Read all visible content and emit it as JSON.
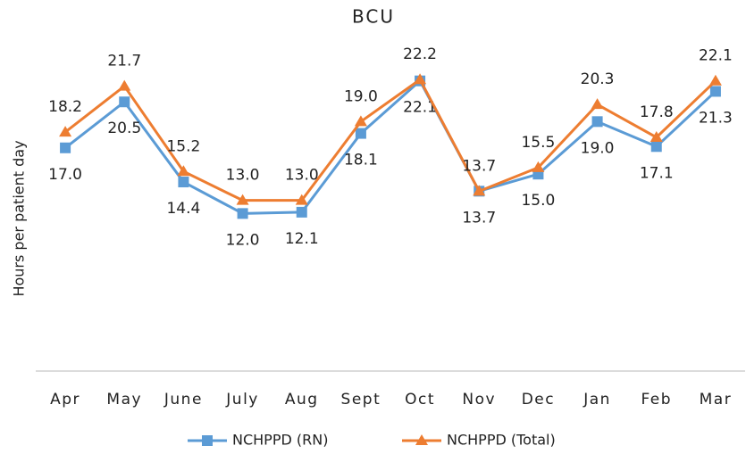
{
  "chart_data": {
    "type": "line",
    "title": "BCU",
    "y_label": "Hours per patient day",
    "categories": [
      "Apr",
      "May",
      "June",
      "July",
      "Aug",
      "Sept",
      "Oct",
      "Nov",
      "Dec",
      "Jan",
      "Feb",
      "Mar"
    ],
    "series": [
      {
        "name": "NCHPPD (RN)",
        "color": "#5b9bd5",
        "marker": "square",
        "values": [
          17.0,
          20.5,
          14.4,
          12.0,
          12.1,
          18.1,
          22.1,
          13.7,
          15.0,
          19.0,
          17.1,
          21.3
        ],
        "value_labels": [
          "17.0",
          "20.5",
          "14.4",
          "12.0",
          "12.1",
          "18.1",
          "22.1",
          "13.7",
          "15.0",
          "19.0",
          "17.1",
          "21.3"
        ]
      },
      {
        "name": "NCHPPD (Total)",
        "color": "#ed7d31",
        "marker": "triangle",
        "values": [
          18.2,
          21.7,
          15.2,
          13.0,
          13.0,
          19.0,
          22.2,
          13.7,
          15.5,
          20.3,
          17.8,
          22.1
        ],
        "value_labels": [
          "18.2",
          "21.7",
          "15.2",
          "13.0",
          "13.0",
          "19.0",
          "22.2",
          "13.7",
          "15.5",
          "20.3",
          "17.8",
          "22.1"
        ]
      }
    ],
    "ylim": [
      0,
      25
    ],
    "legend": "bottom"
  }
}
